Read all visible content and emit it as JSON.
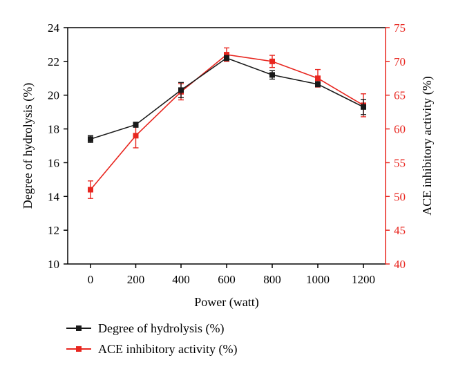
{
  "chart_data": {
    "type": "line",
    "x": [
      0,
      200,
      400,
      600,
      800,
      1000,
      1200
    ],
    "xlabel": "Power (watt)",
    "xticks": [
      "0",
      "200",
      "400",
      "600",
      "800",
      "1000",
      "1200"
    ],
    "left_axis": {
      "label": "Degree of hydrolysis (%)",
      "ylim": [
        10,
        24
      ],
      "ticks": [
        "10",
        "12",
        "14",
        "16",
        "18",
        "20",
        "22",
        "24"
      ],
      "color": "#000000"
    },
    "right_axis": {
      "label": "ACE inhibitory activity (%)",
      "ylim": [
        40,
        75
      ],
      "ticks": [
        "40",
        "45",
        "50",
        "55",
        "60",
        "65",
        "70",
        "75"
      ],
      "color": "#e8261f"
    },
    "series": [
      {
        "name": "Degree of hydrolysis (%)",
        "axis": "left",
        "color": "#1a1a1a",
        "values": [
          17.4,
          18.25,
          20.3,
          22.2,
          21.2,
          20.65,
          19.3
        ],
        "errors": [
          0.2,
          0.15,
          0.45,
          0.15,
          0.25,
          0.15,
          0.45
        ]
      },
      {
        "name": "ACE inhibitory activity (%)",
        "axis": "right",
        "color": "#e8261f",
        "values": [
          51.0,
          59.0,
          65.5,
          71.0,
          70.0,
          67.5,
          63.5
        ],
        "errors": [
          1.3,
          1.8,
          1.2,
          1.0,
          0.9,
          1.3,
          1.7
        ]
      }
    ],
    "legend_position": "bottom-left",
    "grid": false
  },
  "legend": {
    "items": [
      {
        "label": "Degree of hydrolysis (%)"
      },
      {
        "label": "ACE inhibitory activity (%)"
      }
    ]
  }
}
